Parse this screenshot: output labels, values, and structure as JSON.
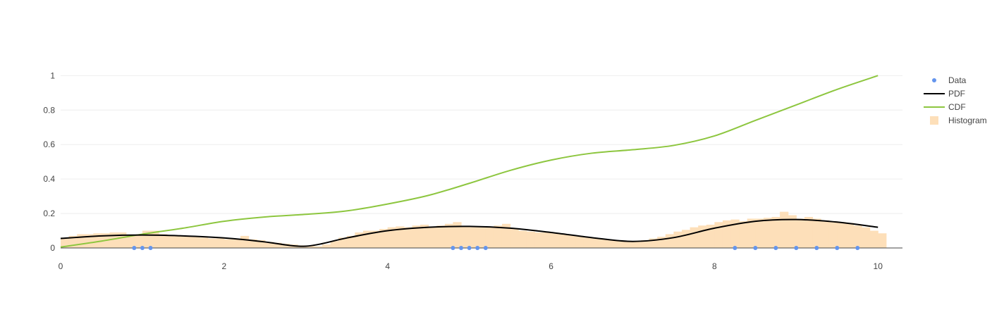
{
  "chart_data": {
    "type": "line",
    "title": "",
    "xlabel": "",
    "ylabel": "",
    "xlim": [
      0,
      10.3
    ],
    "ylim": [
      0,
      1.03
    ],
    "x_ticks": [
      0,
      2,
      4,
      6,
      8,
      10
    ],
    "y_ticks": [
      0,
      0.2,
      0.4,
      0.6,
      0.8,
      1
    ],
    "y_tick_labels": [
      "0",
      "0.2",
      "0.4",
      "0.6",
      "0.8",
      "1"
    ],
    "grid": true,
    "legend_position": "top-right",
    "series": [
      {
        "name": "Data",
        "type": "scatter",
        "color": "#6495ED",
        "x": [
          0.9,
          1.0,
          1.1,
          4.8,
          4.9,
          5.0,
          5.1,
          5.2,
          8.25,
          8.5,
          8.75,
          9.0,
          9.25,
          9.5,
          9.75
        ],
        "y": [
          0,
          0,
          0,
          0,
          0,
          0,
          0,
          0,
          0,
          0,
          0,
          0,
          0,
          0,
          0
        ]
      },
      {
        "name": "PDF",
        "type": "line",
        "color": "#000000",
        "x": [
          0,
          0.5,
          1.0,
          1.5,
          2.0,
          2.5,
          2.8,
          3.0,
          3.2,
          3.5,
          4.0,
          4.5,
          5.0,
          5.5,
          6.0,
          6.5,
          7.0,
          7.5,
          8.0,
          8.5,
          9.0,
          9.5,
          10.0
        ],
        "y": [
          0.055,
          0.07,
          0.075,
          0.07,
          0.058,
          0.035,
          0.015,
          0.01,
          0.025,
          0.058,
          0.1,
          0.12,
          0.125,
          0.115,
          0.09,
          0.06,
          0.038,
          0.06,
          0.115,
          0.155,
          0.165,
          0.15,
          0.12
        ]
      },
      {
        "name": "CDF",
        "type": "line",
        "color": "#8DC63F",
        "x": [
          0,
          0.5,
          1.0,
          1.5,
          2.0,
          2.5,
          3.0,
          3.5,
          4.0,
          4.5,
          5.0,
          5.5,
          6.0,
          6.5,
          7.0,
          7.5,
          8.0,
          8.5,
          9.0,
          9.5,
          10.0
        ],
        "y": [
          0.005,
          0.04,
          0.08,
          0.115,
          0.155,
          0.18,
          0.195,
          0.215,
          0.255,
          0.305,
          0.375,
          0.45,
          0.51,
          0.55,
          0.57,
          0.595,
          0.65,
          0.74,
          0.83,
          0.92,
          1.0
        ]
      },
      {
        "name": "Histogram",
        "type": "bar",
        "color": "#FDDFB9",
        "x_start": 0,
        "bin_width": 0.1,
        "values": [
          0.06,
          0.07,
          0.08,
          0.08,
          0.085,
          0.085,
          0.09,
          0.09,
          0.075,
          0.075,
          0.1,
          0.1,
          0.08,
          0.075,
          0.07,
          0.07,
          0.065,
          0.06,
          0.055,
          0.055,
          0.05,
          0.05,
          0.07,
          0.05,
          0.045,
          0.035,
          0.03,
          0.025,
          0.02,
          0.015,
          0.012,
          0.01,
          0.02,
          0.04,
          0.06,
          0.07,
          0.09,
          0.1,
          0.1,
          0.11,
          0.12,
          0.125,
          0.12,
          0.13,
          0.135,
          0.125,
          0.13,
          0.14,
          0.15,
          0.125,
          0.12,
          0.12,
          0.12,
          0.13,
          0.14,
          0.11,
          0.1,
          0.095,
          0.09,
          0.09,
          0.085,
          0.08,
          0.075,
          0.07,
          0.06,
          0.055,
          0.05,
          0.045,
          0.04,
          0.035,
          0.04,
          0.045,
          0.055,
          0.065,
          0.08,
          0.095,
          0.105,
          0.12,
          0.13,
          0.135,
          0.15,
          0.16,
          0.165,
          0.155,
          0.17,
          0.17,
          0.175,
          0.18,
          0.21,
          0.19,
          0.17,
          0.18,
          0.17,
          0.16,
          0.155,
          0.15,
          0.145,
          0.13,
          0.12,
          0.1,
          0.085
        ]
      }
    ]
  }
}
